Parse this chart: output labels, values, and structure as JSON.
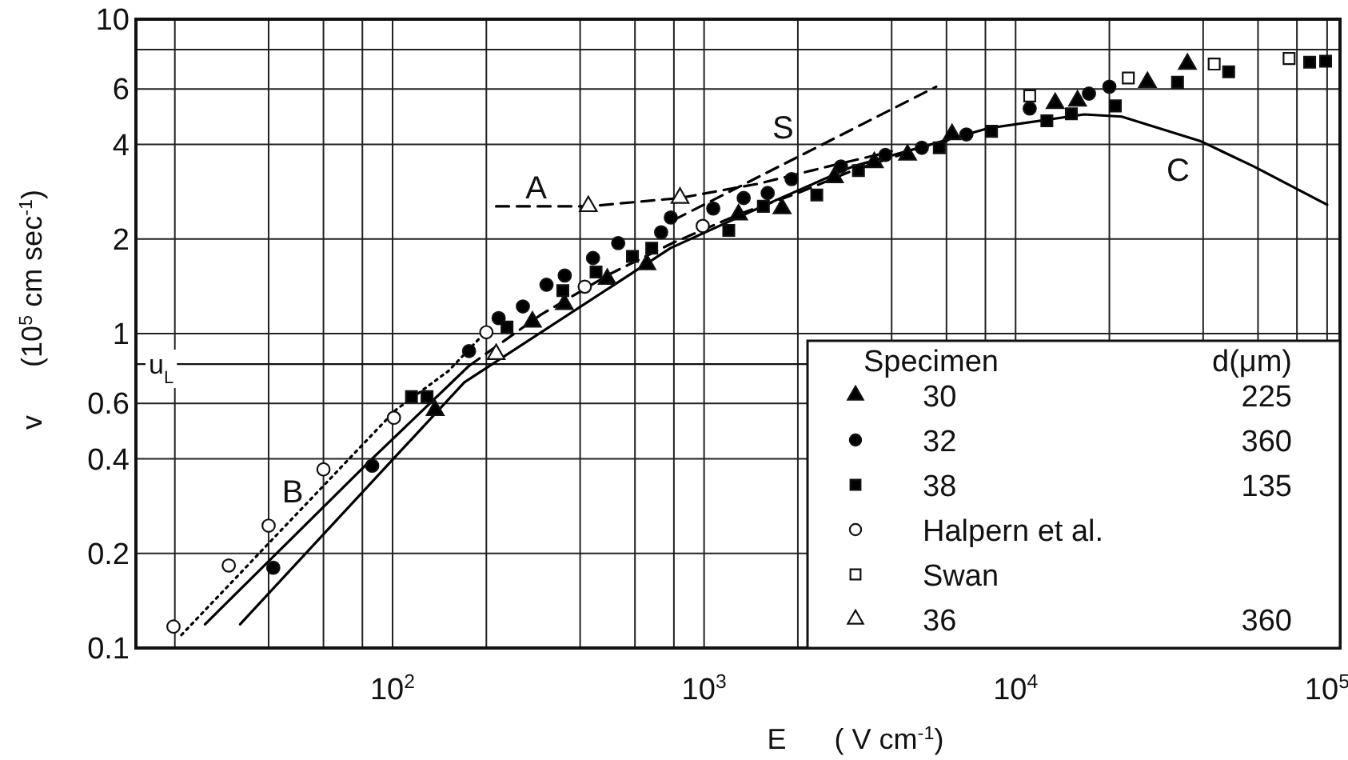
{
  "chart_data": {
    "type": "scatter",
    "xlabel": "E      ( V cm$^{-1}$)",
    "ylabel": "v      (10$^{5}$ cm sec$^{-1}$)",
    "log": "xy",
    "xlim": [
      15,
      110000
    ],
    "ylim": [
      0.1,
      10
    ],
    "xticks": [
      {
        "value": 20,
        "label": null
      },
      {
        "value": 40,
        "label": null
      },
      {
        "value": 60,
        "label": null
      },
      {
        "value": 80,
        "label": null
      },
      {
        "value": 100,
        "label": "10$^{2}$"
      },
      {
        "value": 200,
        "label": null
      },
      {
        "value": 400,
        "label": null
      },
      {
        "value": 600,
        "label": null
      },
      {
        "value": 800,
        "label": null
      },
      {
        "value": 1000,
        "label": "10$^{3}$"
      },
      {
        "value": 2000,
        "label": null
      },
      {
        "value": 4000,
        "label": null
      },
      {
        "value": 6000,
        "label": null
      },
      {
        "value": 8000,
        "label": null
      },
      {
        "value": 10000,
        "label": "10$^{4}$"
      },
      {
        "value": 20000,
        "label": null
      },
      {
        "value": 40000,
        "label": null
      },
      {
        "value": 60000,
        "label": null
      },
      {
        "value": 80000,
        "label": null
      },
      {
        "value": 100000,
        "label": "10$^{5}$"
      }
    ],
    "yticks": [
      0.1,
      0.2,
      0.4,
      0.6,
      1,
      2,
      4,
      6,
      {
        "value": 8,
        "label": null
      },
      10
    ],
    "grid": true,
    "legend": "bottom right",
    "legend_title": "Specimen",
    "ref_lines": [
      {
        "axis": "y",
        "value": 0.8,
        "label": "u$_{L}$"
      }
    ],
    "annotations": [
      "d(μm)",
      "225",
      "360",
      "135",
      "360"
    ],
    "series": [
      {
        "type": "line",
        "name": "B",
        "line_style": "dotted",
        "color": "#000000",
        "x": [
          21,
          102,
          151,
          191
        ],
        "values": [
          0.11,
          0.57,
          0.76,
          0.97
        ]
      },
      {
        "type": "line",
        "line_style": "solid",
        "color": "#000000",
        "x": [
          25,
          86,
          176
        ],
        "values": [
          0.119,
          0.4,
          0.79
        ]
      },
      {
        "type": "line",
        "line_style": "dashed",
        "color": "#000000",
        "x": [
          176,
          300,
          500,
          800,
          1300,
          2000,
          3000,
          5000,
          7000
        ],
        "values": [
          0.79,
          1.15,
          1.55,
          1.95,
          2.4,
          2.8,
          3.3,
          3.9,
          4.3
        ]
      },
      {
        "type": "line",
        "name": "A",
        "line_style": "dashed",
        "color": "#000000",
        "x": [
          215,
          425,
          837,
          1500,
          2500,
          4000
        ],
        "values": [
          2.54,
          2.54,
          2.7,
          3.0,
          3.4,
          3.8
        ]
      },
      {
        "type": "line",
        "name": "S",
        "line_style": "dashed",
        "color": "#000000",
        "x": [
          800,
          5560
        ],
        "values": [
          2.3,
          6.1
        ]
      },
      {
        "type": "line",
        "name": "C",
        "line_style": "solid",
        "color": "#000000",
        "x": [
          32.4,
          170,
          780,
          1720,
          3000,
          8180,
          16600,
          21900,
          39100,
          58200,
          100000
        ],
        "values": [
          0.119,
          0.7,
          1.87,
          2.67,
          3.4,
          4.5,
          4.98,
          4.9,
          4.1,
          3.4,
          2.57
        ]
      },
      {
        "name": "30",
        "marker": "triangle",
        "color": "#000000",
        "x": [
          137,
          281,
          356,
          489,
          655,
          1290,
          1780,
          2620,
          3520,
          4500,
          6250,
          13400,
          15800,
          26500,
          35600
        ],
        "values": [
          0.57,
          1.09,
          1.24,
          1.49,
          1.66,
          2.39,
          2.5,
          3.14,
          3.5,
          3.7,
          4.3,
          5.4,
          5.5,
          6.3,
          7.2
        ]
      },
      {
        "name": "32",
        "marker": "circle",
        "color": "#000000",
        "x": [
          41.4,
          86,
          176,
          219,
          262,
          312,
          357,
          440,
          530,
          728,
          782,
          1070,
          1340,
          1600,
          1910,
          2750,
          3820,
          5000,
          6950,
          11100,
          17200,
          20000
        ],
        "values": [
          0.18,
          0.38,
          0.88,
          1.12,
          1.22,
          1.43,
          1.53,
          1.74,
          1.94,
          2.1,
          2.34,
          2.5,
          2.7,
          2.8,
          3.1,
          3.4,
          3.7,
          3.9,
          4.3,
          5.2,
          5.8,
          6.1
        ]
      },
      {
        "name": "38",
        "marker": "square",
        "color": "#000000",
        "x": [
          115,
          129,
          233,
          352,
          450,
          589,
          679,
          1200,
          1550,
          2300,
          3130,
          5690,
          8370,
          12600,
          15100,
          20900,
          33100,
          48300,
          87900,
          98900
        ],
        "values": [
          0.63,
          0.63,
          1.05,
          1.37,
          1.57,
          1.76,
          1.87,
          2.13,
          2.54,
          2.76,
          3.3,
          3.9,
          4.4,
          4.75,
          5.0,
          5.3,
          6.3,
          6.8,
          7.3,
          7.35
        ]
      },
      {
        "name": "Halpern et al.",
        "marker": "circle",
        "color": "#ffffff",
        "x": [
          19.8,
          29.8,
          40,
          60,
          101,
          200,
          414,
          990
        ],
        "values": [
          0.117,
          0.183,
          0.245,
          0.37,
          0.54,
          1.01,
          1.41,
          2.2
        ]
      },
      {
        "name": "Swan",
        "marker": "square",
        "color": "#ffffff",
        "x": [
          11100,
          23000,
          43400,
          75500
        ],
        "values": [
          5.7,
          6.5,
          7.2,
          7.5
        ]
      },
      {
        "name": "36",
        "marker": "triangle",
        "color": "#ffffff",
        "x": [
          215,
          425,
          837
        ],
        "values": [
          0.86,
          2.54,
          2.7
        ]
      }
    ]
  }
}
